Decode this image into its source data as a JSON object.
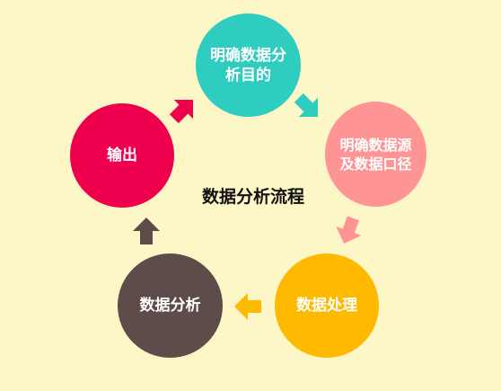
{
  "center_title": "数据分析流程",
  "steps": [
    {
      "label": "明确数据分析目的",
      "color": "#2ecdc0"
    },
    {
      "label": "明确数据源及数据口径",
      "color": "#ff9494"
    },
    {
      "label": "数据处理",
      "color": "#fdba00"
    },
    {
      "label": "数据分析",
      "color": "#5d4c4a"
    },
    {
      "label": "输出",
      "color": "#ef004f"
    }
  ],
  "arrow_colors": [
    "#2ecdc0",
    "#ff9494",
    "#fdba00",
    "#5d4c4a",
    "#ef004f"
  ]
}
